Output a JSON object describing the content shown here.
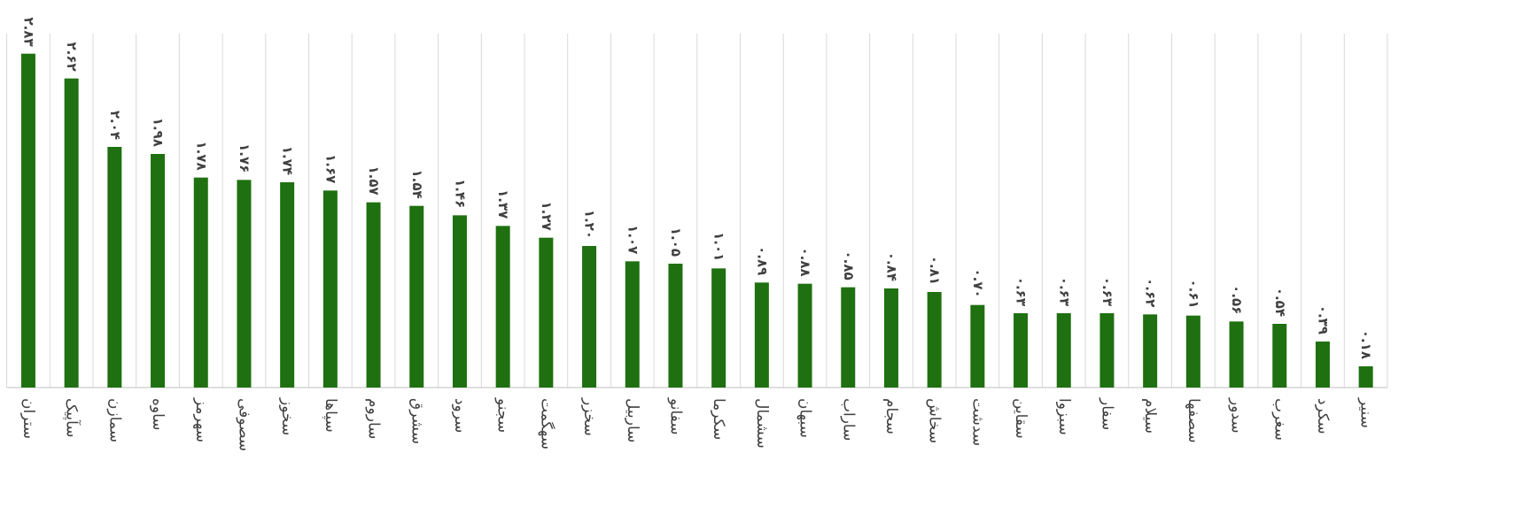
{
  "chart_data": {
    "type": "bar",
    "categories": [
      "ستران",
      "سآپیک",
      "سمازن",
      "ساوه",
      "سهرمز",
      "سصوفی",
      "سخوز",
      "سپاها",
      "ساروم",
      "سشرق",
      "سرود",
      "سجنو",
      "سهگمت",
      "سخزر",
      "ساربیل",
      "سفانو",
      "سکرما",
      "سشمال",
      "سبهان",
      "ساراب",
      "سجام",
      "سخاش",
      "سدشت",
      "سقاین",
      "سبزوا",
      "سفار",
      "سیلام",
      "سصفها",
      "سدور",
      "سغرب",
      "سکرد",
      "سنیر"
    ],
    "values": [
      2.83,
      2.62,
      2.04,
      1.98,
      1.78,
      1.76,
      1.74,
      1.67,
      1.57,
      1.54,
      1.46,
      1.37,
      1.27,
      1.2,
      1.07,
      1.05,
      1.01,
      0.89,
      0.88,
      0.85,
      0.84,
      0.81,
      0.7,
      0.63,
      0.63,
      0.63,
      0.62,
      0.61,
      0.56,
      0.54,
      0.39,
      0.18
    ],
    "value_labels": [
      "۲.۸۳",
      "۲.۶۲",
      "۲.۰۴",
      "۱.۹۸",
      "۱.۷۸",
      "۱.۷۶",
      "۱.۷۴",
      "۱.۶۷",
      "۱.۵۷",
      "۱.۵۴",
      "۱.۴۶",
      "۱.۳۷",
      "۱.۲۷",
      "۱.۲۰",
      "۱.۰۷",
      "۱.۰۵",
      "۱.۰۱",
      "۰.۸۹",
      "۰.۸۸",
      "۰.۸۵",
      "۰.۸۴",
      "۰.۸۱",
      "۰.۷۰",
      "۰.۶۳",
      "۰.۶۳",
      "۰.۶۳",
      "۰.۶۲",
      "۰.۶۱",
      "۰.۵۶",
      "۰.۵۴",
      "۰.۳۹",
      "۰.۱۸"
    ],
    "color": "#1f7010",
    "ylim": [
      0,
      3
    ]
  }
}
